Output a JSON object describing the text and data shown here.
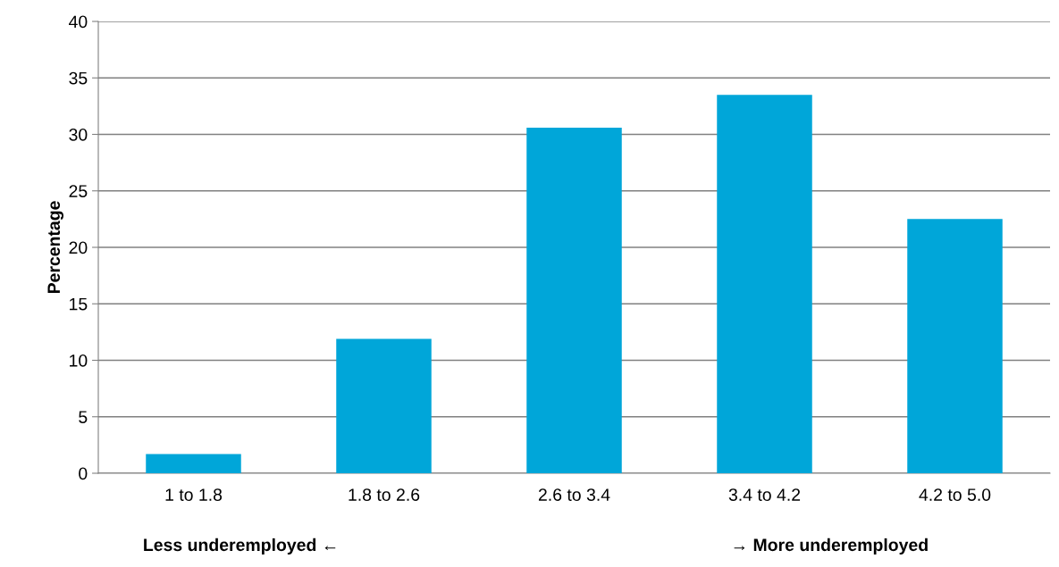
{
  "chart_data": {
    "type": "bar",
    "ylabel": "Percentage",
    "categories": [
      "1 to 1.8",
      "1.8 to 2.6",
      "2.6 to 3.4",
      "3.4 to 4.2",
      "4.2 to 5.0"
    ],
    "values": [
      1.7,
      11.9,
      30.6,
      33.5,
      22.5
    ],
    "color": "#00a6d9",
    "ylim": [
      0,
      40
    ],
    "yticks": [
      0,
      5,
      10,
      15,
      20,
      25,
      30,
      35,
      40
    ],
    "grid": "y",
    "annotations": [
      "Less underemployed ←",
      "→ More underemployed"
    ]
  }
}
